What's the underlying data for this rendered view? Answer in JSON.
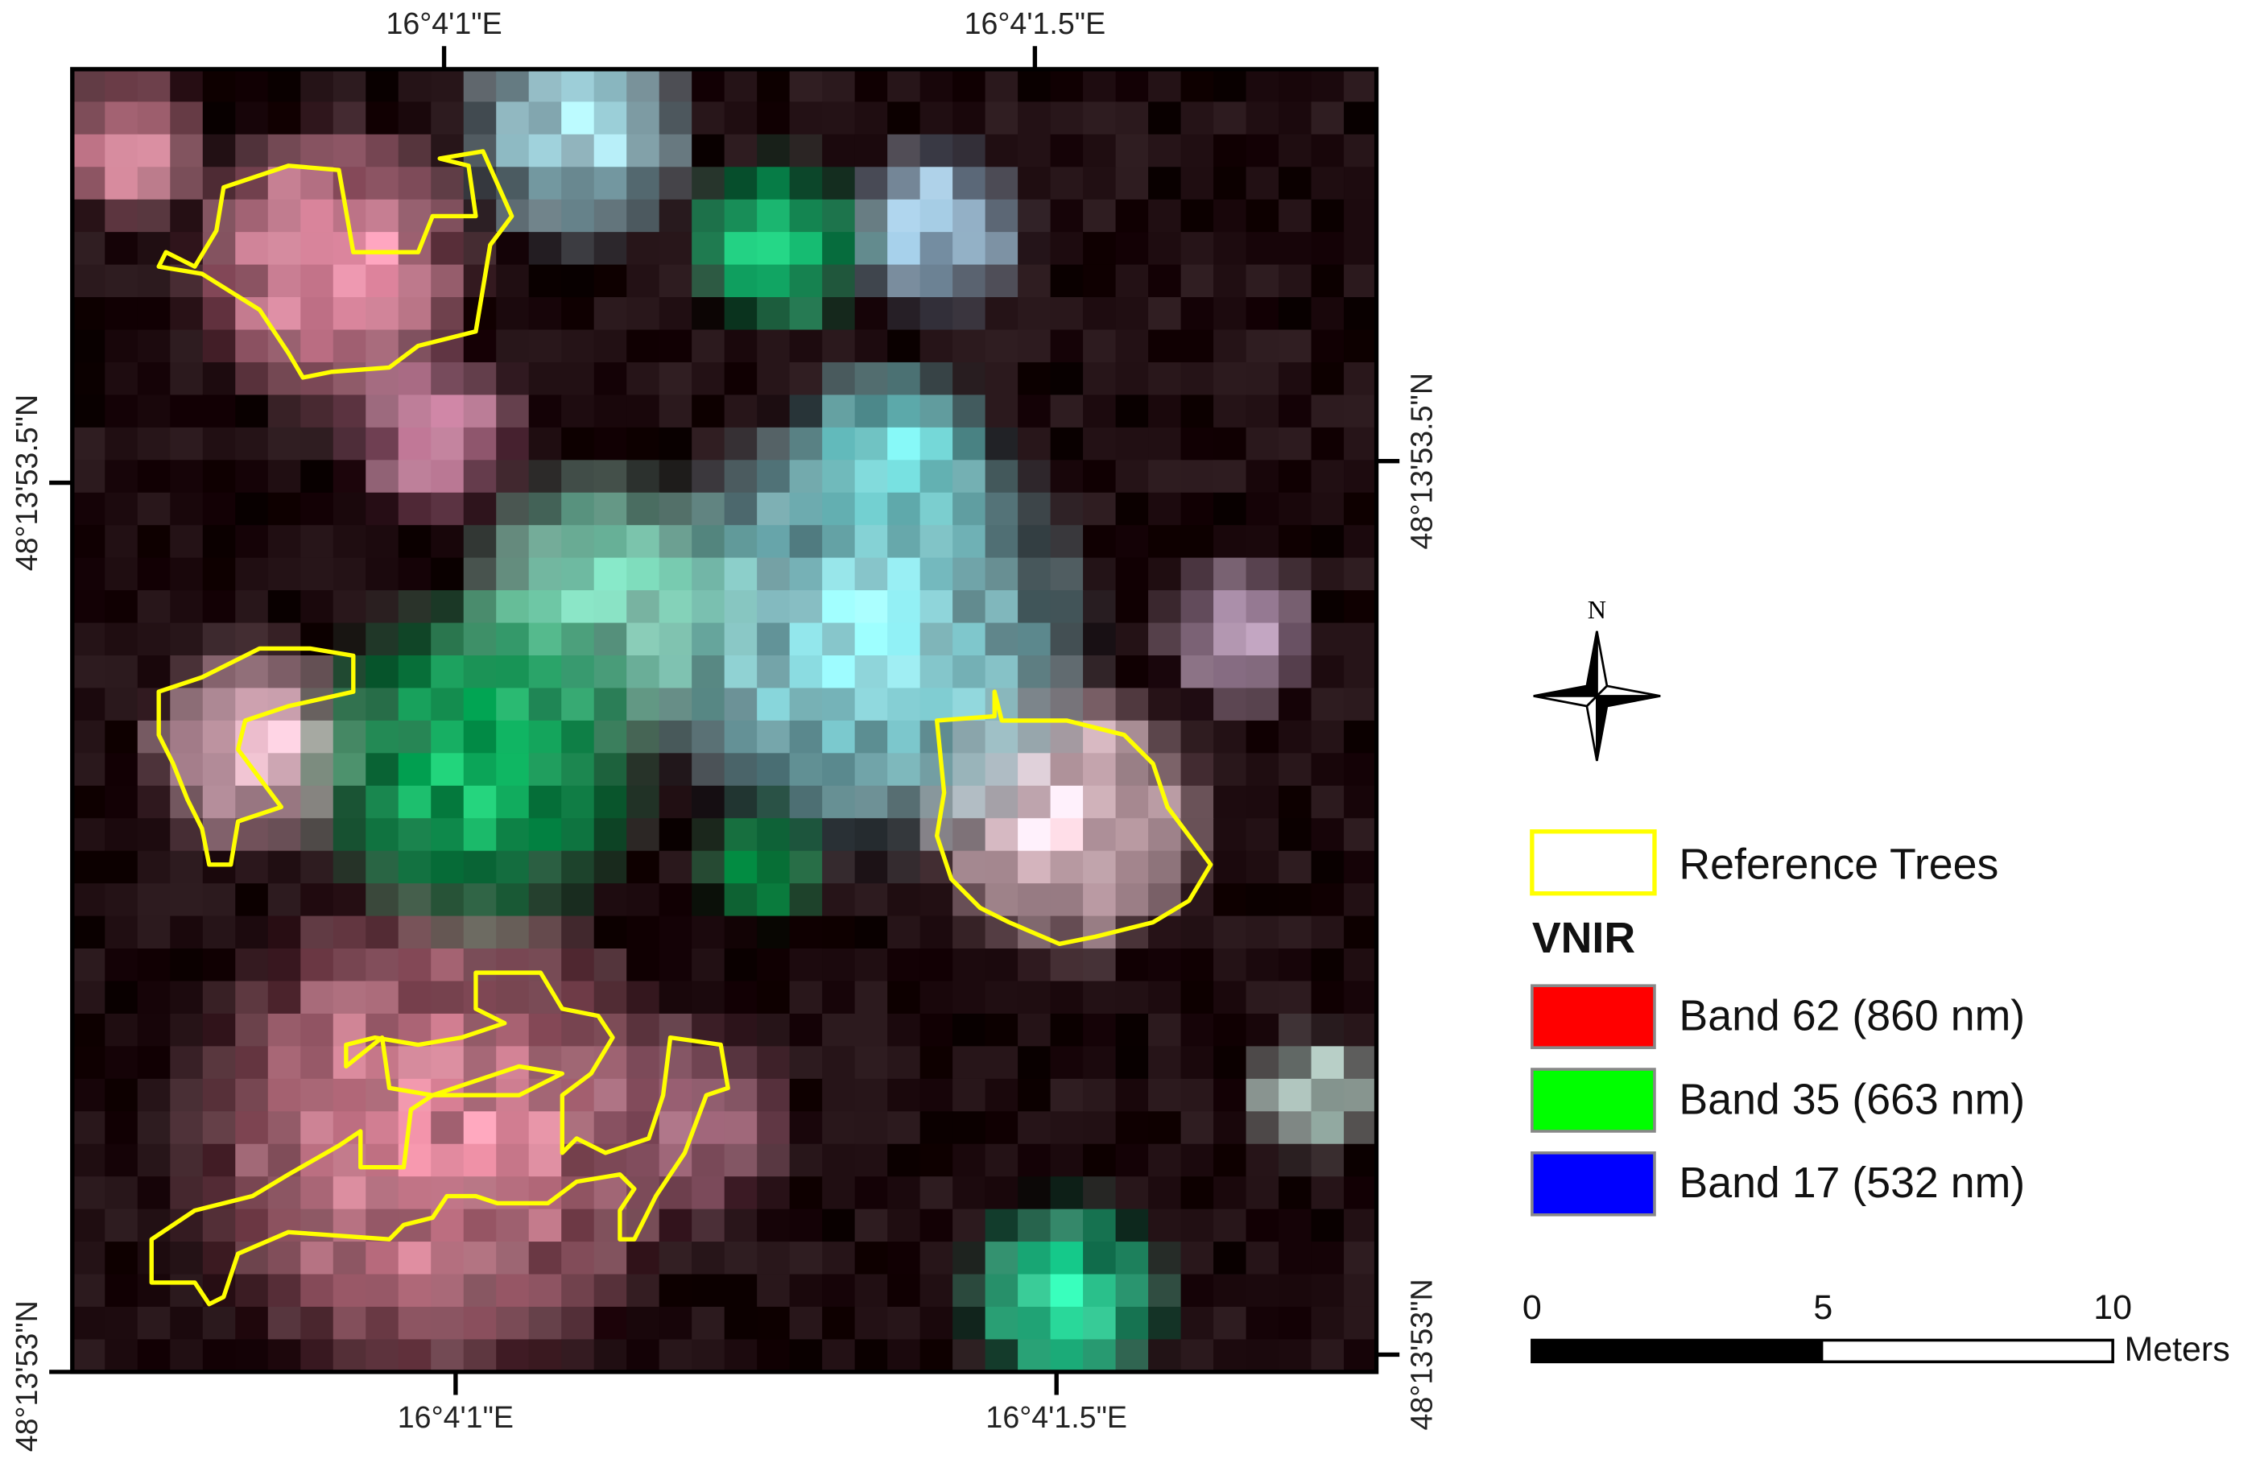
{
  "map": {
    "coordinates": {
      "top": [
        "16°4'1\"E",
        "16°4'1.5\"E"
      ],
      "bottom": [
        "16°4'1\"E",
        "16°4'1.5\"E"
      ],
      "left": [
        "48°13'53.5\"N",
        "48°13'53\"N"
      ],
      "right": [
        "48°13'53.5\"N",
        "48°13'53\"N"
      ]
    },
    "north": "N",
    "legend": {
      "reference": "Reference Trees",
      "group": "VNIR",
      "bands": [
        {
          "label": "Band 62 (860 nm)",
          "color": "#ff0000"
        },
        {
          "label": "Band 35 (663 nm)",
          "color": "#00ff00"
        },
        {
          "label": "Band 17 (532 nm)",
          "color": "#0000ff"
        }
      ]
    },
    "scale_bar": {
      "labels": [
        "0",
        "5",
        "10"
      ],
      "unit": "Meters"
    }
  }
}
